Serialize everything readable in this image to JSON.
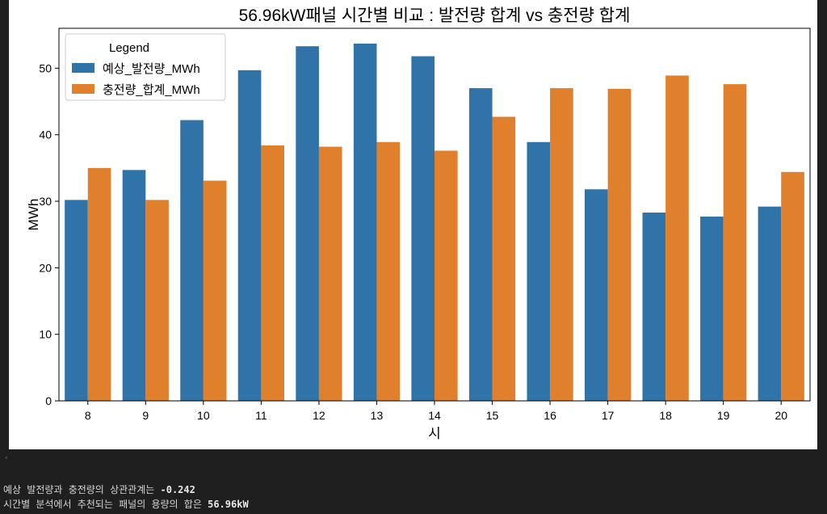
{
  "chart_data": {
    "type": "bar",
    "title": "56.96kW패널 시간별 비교 : 발전량 합계 vs 충전량 합계",
    "xlabel": "시",
    "ylabel": "MWh",
    "categories": [
      "8",
      "9",
      "10",
      "11",
      "12",
      "13",
      "14",
      "15",
      "16",
      "17",
      "18",
      "19",
      "20"
    ],
    "series": [
      {
        "name": "예상_발전량_MWh",
        "color": "#2f73a8",
        "values": [
          30.2,
          34.7,
          42.2,
          49.7,
          53.3,
          53.7,
          51.8,
          47.0,
          38.9,
          31.8,
          28.3,
          27.7,
          29.2
        ]
      },
      {
        "name": "충전량_합계_MWh",
        "color": "#e07f2c",
        "values": [
          35.0,
          30.2,
          33.1,
          38.4,
          38.2,
          38.9,
          37.6,
          42.7,
          47.0,
          46.9,
          48.9,
          47.6,
          34.4
        ]
      }
    ],
    "ylim": [
      0,
      56
    ],
    "yticks": [
      0,
      10,
      20,
      30,
      40,
      50
    ],
    "legend": {
      "title": "Legend",
      "placement": "top-left"
    },
    "grid": false
  },
  "output": {
    "scroll_marker": "‹",
    "line1_text": "예상 발전량과 충전량의 상관관계는 ",
    "line1_value": "-0.242",
    "line2_text": "시간별 분석에서 추천되는 패널의 용량의 합은 ",
    "line2_value": "56.96kW"
  }
}
